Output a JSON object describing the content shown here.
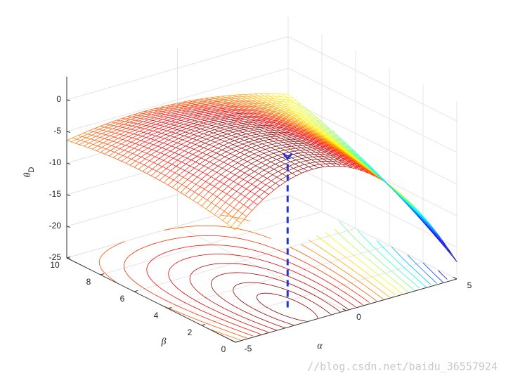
{
  "chart_data": {
    "type": "surface",
    "zlabel": {
      "symbol": "θ",
      "subscript": "D"
    },
    "xlabel": "α",
    "ylabel": "β",
    "xlim": [
      -5,
      5
    ],
    "ylim": [
      0,
      10
    ],
    "zlim": [
      -25,
      2
    ],
    "xticks": [
      -5,
      0,
      5
    ],
    "yticks": [
      0,
      2,
      4,
      6,
      8,
      10
    ],
    "zticks": [
      -25,
      -20,
      -15,
      -10,
      -5,
      0
    ],
    "colormap": "jet",
    "grid": true
  },
  "watermark": "//blog.csdn.net/baidu_36557924"
}
